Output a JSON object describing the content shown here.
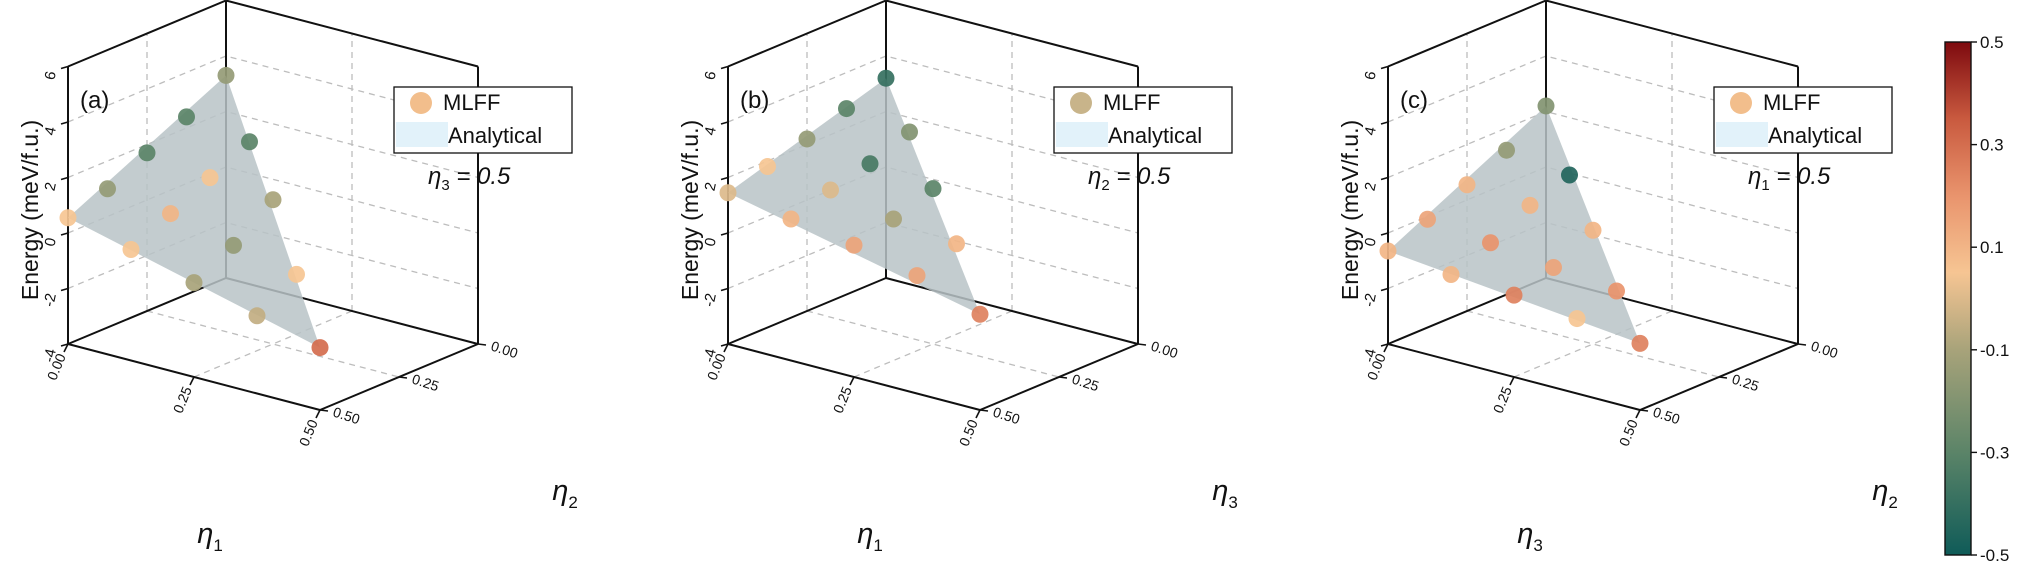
{
  "chart_data": [
    {
      "type": "scatter",
      "panel_label": "(a)",
      "z_label": "Energy (meV/f.u.)",
      "x_label_symbol": "η",
      "x_label_sub": "1",
      "y_label_symbol": "η",
      "y_label_sub": "2",
      "fixed_symbol": "η",
      "fixed_sub": "3",
      "fixed_rest": " = 0.5",
      "z_ticks": [
        "-4",
        "-2",
        "0",
        "2",
        "4",
        "6"
      ],
      "x_ticks": [
        "0.00",
        "0.25",
        "0.50"
      ],
      "y_ticks": [
        "0.00",
        "0.25",
        "0.50"
      ],
      "zlim": [
        -4,
        6
      ],
      "legend": {
        "marker_label": "MLFF",
        "marker_color": "#F2BE8C",
        "surface_label": "Analytical",
        "surface_color": "#E2F2FA",
        "placement": "top-right"
      },
      "surface_color": "#B9C3C7",
      "points": [
        {
          "x": 0.0,
          "y": 0.0,
          "z": 0.55,
          "v": 0.05
        },
        {
          "x": 0.125,
          "y": 0.0,
          "z": 0.0,
          "v": 0.05
        },
        {
          "x": 0.25,
          "y": 0.0,
          "z": -0.6,
          "v": -0.1
        },
        {
          "x": 0.375,
          "y": 0.0,
          "z": -1.2,
          "v": -0.05
        },
        {
          "x": 0.5,
          "y": 0.0,
          "z": -1.75,
          "v": 0.3
        },
        {
          "x": 0.0,
          "y": 0.125,
          "z": 1.0,
          "v": -0.15
        },
        {
          "x": 0.125,
          "y": 0.125,
          "z": 0.7,
          "v": 0.1
        },
        {
          "x": 0.25,
          "y": 0.125,
          "z": 0.15,
          "v": -0.15
        },
        {
          "x": 0.375,
          "y": 0.125,
          "z": -0.3,
          "v": 0.05
        },
        {
          "x": 0.0,
          "y": 0.25,
          "z": 1.7,
          "v": -0.3
        },
        {
          "x": 0.125,
          "y": 0.25,
          "z": 1.4,
          "v": 0.05
        },
        {
          "x": 0.25,
          "y": 0.25,
          "z": 1.2,
          "v": -0.1
        },
        {
          "x": 0.0,
          "y": 0.375,
          "z": 2.4,
          "v": -0.3
        },
        {
          "x": 0.125,
          "y": 0.375,
          "z": 2.1,
          "v": -0.3
        },
        {
          "x": 0.0,
          "y": 0.5,
          "z": 3.3,
          "v": -0.15
        }
      ]
    },
    {
      "type": "scatter",
      "panel_label": "(b)",
      "z_label": "Energy (meV/f.u.)",
      "x_label_symbol": "η",
      "x_label_sub": "1",
      "y_label_symbol": "η",
      "y_label_sub": "3",
      "fixed_symbol": "η",
      "fixed_sub": "2",
      "fixed_rest": " = 0.5",
      "z_ticks": [
        "-4",
        "-2",
        "0",
        "2",
        "4",
        "6"
      ],
      "x_ticks": [
        "0.00",
        "0.25",
        "0.50"
      ],
      "y_ticks": [
        "0.00",
        "0.25",
        "0.50"
      ],
      "zlim": [
        -4,
        6
      ],
      "legend": {
        "marker_label": "MLFF",
        "marker_color": "#C8B48A",
        "surface_label": "Analytical",
        "surface_color": "#E2F2FA",
        "placement": "top-right"
      },
      "surface_color": "#B9C3C7",
      "points": [
        {
          "x": 0.0,
          "y": 0.0,
          "z": 1.45,
          "v": 0.0
        },
        {
          "x": 0.125,
          "y": 0.0,
          "z": 1.1,
          "v": 0.1
        },
        {
          "x": 0.25,
          "y": 0.0,
          "z": 0.75,
          "v": 0.15
        },
        {
          "x": 0.375,
          "y": 0.0,
          "z": 0.25,
          "v": 0.15
        },
        {
          "x": 0.5,
          "y": 0.0,
          "z": -0.55,
          "v": 0.25
        },
        {
          "x": 0.0,
          "y": 0.125,
          "z": 1.8,
          "v": 0.05
        },
        {
          "x": 0.125,
          "y": 0.125,
          "z": 1.55,
          "v": 0.0
        },
        {
          "x": 0.25,
          "y": 0.125,
          "z": 1.1,
          "v": -0.1
        },
        {
          "x": 0.375,
          "y": 0.125,
          "z": 0.8,
          "v": 0.1
        },
        {
          "x": 0.0,
          "y": 0.25,
          "z": 2.2,
          "v": -0.15
        },
        {
          "x": 0.125,
          "y": 0.25,
          "z": 1.9,
          "v": -0.35
        },
        {
          "x": 0.25,
          "y": 0.25,
          "z": 1.6,
          "v": -0.3
        },
        {
          "x": 0.0,
          "y": 0.375,
          "z": 2.7,
          "v": -0.3
        },
        {
          "x": 0.125,
          "y": 0.375,
          "z": 2.45,
          "v": -0.2
        },
        {
          "x": 0.0,
          "y": 0.5,
          "z": 3.2,
          "v": -0.4
        }
      ]
    },
    {
      "type": "scatter",
      "panel_label": "(c)",
      "z_label": "Energy (meV/f.u.)",
      "x_label_symbol": "η",
      "x_label_sub": "3",
      "y_label_symbol": "η",
      "y_label_sub": "2",
      "fixed_symbol": "η",
      "fixed_sub": "1",
      "fixed_rest": " = 0.5",
      "z_ticks": [
        "-4",
        "-2",
        "0",
        "2",
        "4",
        "6"
      ],
      "x_ticks": [
        "0.00",
        "0.25",
        "0.50"
      ],
      "y_ticks": [
        "0.00",
        "0.25",
        "0.50"
      ],
      "zlim": [
        -4,
        6
      ],
      "legend": {
        "marker_label": "MLFF",
        "marker_color": "#F2BE8C",
        "surface_label": "Analytical",
        "surface_color": "#E2F2FA",
        "placement": "top-right"
      },
      "surface_color": "#B9C3C7",
      "points": [
        {
          "x": 0.0,
          "y": 0.0,
          "z": -0.65,
          "v": 0.1
        },
        {
          "x": 0.125,
          "y": 0.0,
          "z": -0.9,
          "v": 0.1
        },
        {
          "x": 0.25,
          "y": 0.0,
          "z": -1.05,
          "v": 0.25
        },
        {
          "x": 0.375,
          "y": 0.0,
          "z": -1.3,
          "v": 0.05
        },
        {
          "x": 0.5,
          "y": 0.0,
          "z": -1.6,
          "v": 0.25
        },
        {
          "x": 0.0,
          "y": 0.125,
          "z": -0.1,
          "v": 0.15
        },
        {
          "x": 0.125,
          "y": 0.125,
          "z": -0.35,
          "v": 0.2
        },
        {
          "x": 0.25,
          "y": 0.125,
          "z": -0.65,
          "v": 0.15
        },
        {
          "x": 0.375,
          "y": 0.125,
          "z": -0.9,
          "v": 0.2
        },
        {
          "x": 0.0,
          "y": 0.25,
          "z": 0.55,
          "v": 0.1
        },
        {
          "x": 0.125,
          "y": 0.25,
          "z": 0.4,
          "v": 0.1
        },
        {
          "x": 0.25,
          "y": 0.25,
          "z": 0.1,
          "v": 0.1
        },
        {
          "x": 0.0,
          "y": 0.375,
          "z": 1.2,
          "v": -0.15
        },
        {
          "x": 0.125,
          "y": 0.375,
          "z": 0.9,
          "v": -0.45
        },
        {
          "x": 0.0,
          "y": 0.5,
          "z": 2.2,
          "v": -0.2
        }
      ]
    }
  ],
  "colorbar": {
    "min": -0.5,
    "max": 0.5,
    "ticks": [
      "0.5",
      "0.3",
      "0.1",
      "-0.1",
      "-0.3",
      "-0.5"
    ],
    "tick_values": [
      0.5,
      0.3,
      0.1,
      -0.1,
      -0.3,
      -0.5
    ],
    "stops": [
      {
        "value": -0.5,
        "color": "#0F5B58"
      },
      {
        "value": -0.3,
        "color": "#5B8468"
      },
      {
        "value": -0.1,
        "color": "#A8A37A"
      },
      {
        "value": 0.05,
        "color": "#F6C593"
      },
      {
        "value": 0.2,
        "color": "#E9946D"
      },
      {
        "value": 0.35,
        "color": "#C95A3F"
      },
      {
        "value": 0.5,
        "color": "#7E0A0F"
      }
    ]
  }
}
